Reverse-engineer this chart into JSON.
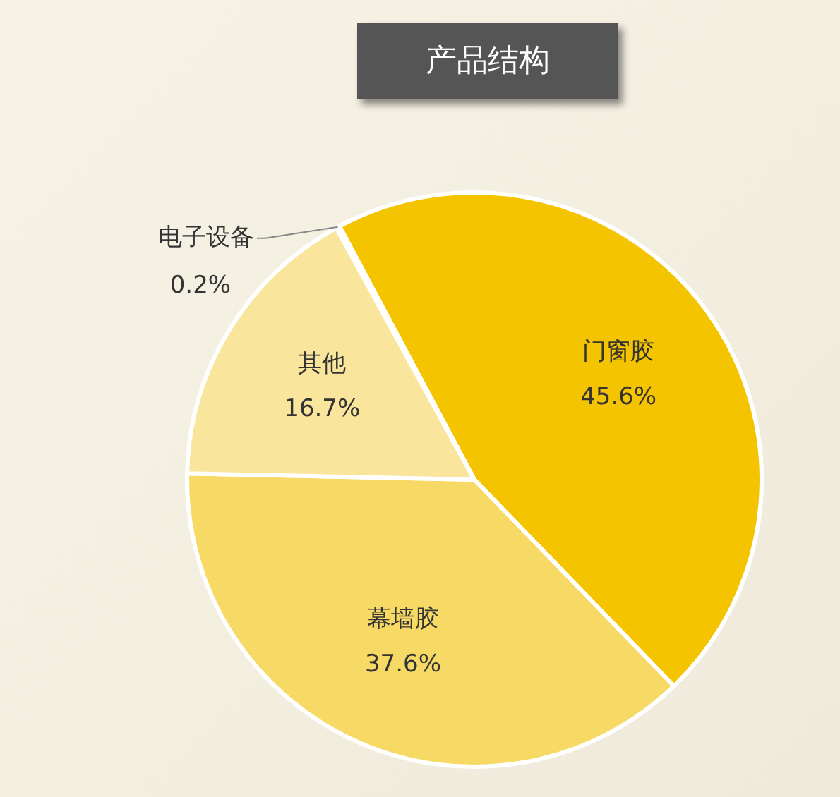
{
  "chart_data": {
    "type": "pie",
    "title": "产品结构",
    "legend": false,
    "categories": [
      "门窗胶",
      "幕墙胶",
      "其他",
      "电子设备"
    ],
    "values": [
      45.6,
      37.6,
      16.7,
      0.2
    ],
    "value_labels": [
      "45.6%",
      "37.6%",
      "16.7%",
      "0.2%"
    ],
    "colors": [
      "#f5c400",
      "#f7da66",
      "#f9e59c",
      "#f5c400"
    ]
  }
}
